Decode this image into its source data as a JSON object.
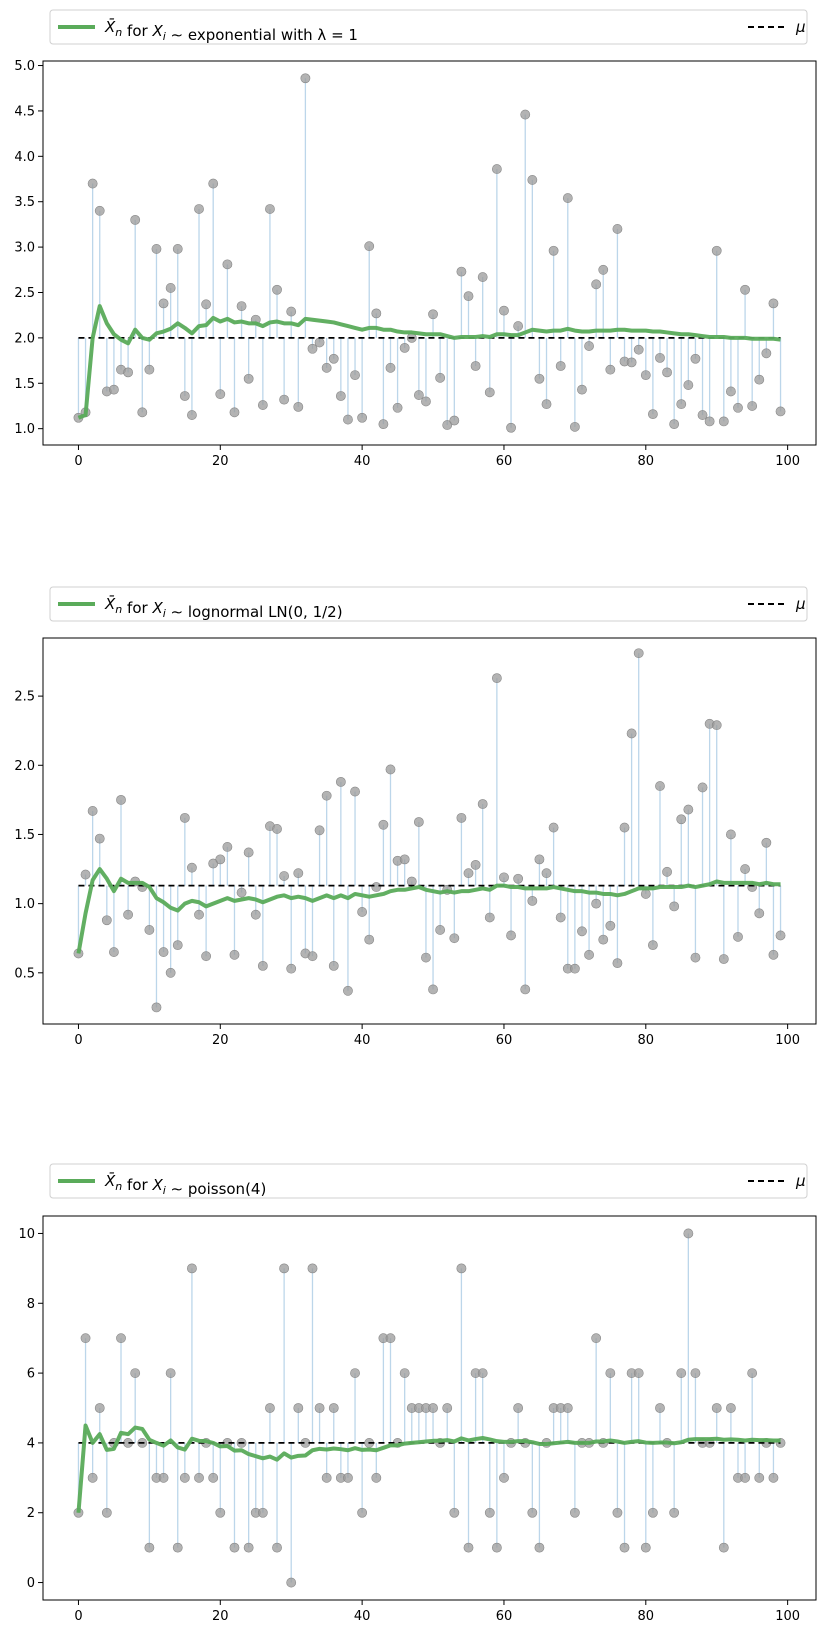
{
  "colors": {
    "mean_line": "#5aab5a",
    "mu_line": "#000000",
    "points": "#9a9a9a",
    "stems": "#bcd6ea"
  },
  "chart_data": [
    {
      "type": "line",
      "legend": {
        "prefix": "X̄",
        "sub_n": "n",
        "mid": " for ",
        "xvar": "X",
        "sub_i": "i",
        "dist": " ∼ exponential with λ = 1",
        "mu_label": "μ"
      },
      "mu": 2.0,
      "xlim": [
        -5,
        104
      ],
      "ylim": [
        0.82,
        5.05
      ],
      "xticks": [
        "0",
        "20",
        "40",
        "60",
        "80",
        "100"
      ],
      "yticks": [
        "1.0",
        "1.5",
        "2.0",
        "2.5",
        "3.0",
        "3.5",
        "4.0",
        "4.5",
        "5.0"
      ],
      "samples": [
        1.12,
        1.18,
        3.7,
        3.4,
        1.41,
        1.43,
        1.65,
        1.62,
        3.3,
        1.18,
        1.65,
        2.98,
        2.38,
        2.55,
        2.98,
        1.36,
        1.15,
        3.42,
        2.37,
        3.7,
        1.38,
        2.81,
        1.18,
        2.35,
        1.55,
        2.2,
        1.26,
        3.42,
        2.53,
        1.32,
        2.29,
        1.24,
        4.86,
        1.88,
        1.95,
        1.67,
        1.77,
        1.36,
        1.1,
        1.59,
        1.12,
        3.01,
        2.27,
        1.05,
        1.67,
        1.23,
        1.89,
        2.0,
        1.37,
        1.3,
        2.26,
        1.56,
        1.04,
        1.09,
        2.73,
        2.46,
        1.69,
        2.67,
        1.4,
        3.86,
        2.3,
        1.01,
        2.13,
        4.46,
        3.74,
        1.55,
        1.27,
        2.96,
        1.69,
        3.54,
        1.02,
        1.43,
        1.91,
        2.59,
        2.75,
        1.65,
        3.2,
        1.74,
        1.73,
        1.87,
        1.59,
        1.16,
        1.78,
        1.62,
        1.05,
        1.27,
        1.48,
        1.77,
        1.15,
        1.08,
        2.96,
        1.08,
        1.41,
        1.23,
        2.53,
        1.25,
        1.54,
        1.83,
        2.38,
        1.19
      ],
      "running_mean": [
        1.12,
        1.15,
        2.0,
        2.35,
        2.16,
        2.04,
        1.98,
        1.94,
        2.09,
        2.0,
        1.98,
        2.05,
        2.07,
        2.1,
        2.16,
        2.11,
        2.05,
        2.13,
        2.14,
        2.22,
        2.18,
        2.21,
        2.17,
        2.18,
        2.16,
        2.16,
        2.13,
        2.17,
        2.18,
        2.16,
        2.16,
        2.14,
        2.21,
        2.2,
        2.19,
        2.18,
        2.17,
        2.15,
        2.13,
        2.11,
        2.09,
        2.11,
        2.11,
        2.09,
        2.09,
        2.07,
        2.06,
        2.06,
        2.05,
        2.04,
        2.04,
        2.04,
        2.02,
        2.0,
        2.01,
        2.01,
        2.01,
        2.02,
        2.01,
        2.04,
        2.04,
        2.03,
        2.03,
        2.06,
        2.09,
        2.08,
        2.07,
        2.08,
        2.08,
        2.1,
        2.08,
        2.07,
        2.07,
        2.08,
        2.08,
        2.08,
        2.09,
        2.09,
        2.08,
        2.08,
        2.08,
        2.07,
        2.07,
        2.06,
        2.05,
        2.04,
        2.04,
        2.03,
        2.02,
        2.01,
        2.01,
        2.01,
        2.0,
        2.0,
        2.0,
        1.99,
        1.99,
        1.99,
        1.99,
        1.98
      ]
    },
    {
      "type": "line",
      "legend": {
        "prefix": "X̄",
        "sub_n": "n",
        "mid": " for ",
        "xvar": "X",
        "sub_i": "i",
        "dist": " ∼ lognormal LN(0, 1/2)",
        "mu_label": "μ"
      },
      "mu": 1.13,
      "xlim": [
        -5,
        104
      ],
      "ylim": [
        0.13,
        2.92
      ],
      "xticks": [
        "0",
        "20",
        "40",
        "60",
        "80",
        "100"
      ],
      "yticks": [
        "0.5",
        "1.0",
        "1.5",
        "2.0",
        "2.5"
      ],
      "samples": [
        0.64,
        1.21,
        1.67,
        1.47,
        0.88,
        0.65,
        1.75,
        0.92,
        1.16,
        1.12,
        0.81,
        0.25,
        0.65,
        0.5,
        0.7,
        1.62,
        1.26,
        0.92,
        0.62,
        1.29,
        1.32,
        1.41,
        0.63,
        1.08,
        1.37,
        0.92,
        0.55,
        1.56,
        1.54,
        1.2,
        0.53,
        1.22,
        0.64,
        0.62,
        1.53,
        1.78,
        0.55,
        1.88,
        0.37,
        1.81,
        0.94,
        0.74,
        1.12,
        1.57,
        1.97,
        1.31,
        1.32,
        1.16,
        1.59,
        0.61,
        0.38,
        0.81,
        1.1,
        0.75,
        1.62,
        1.22,
        1.28,
        1.72,
        0.9,
        2.63,
        1.19,
        0.77,
        1.18,
        0.38,
        1.02,
        1.32,
        1.22,
        1.55,
        0.9,
        0.53,
        0.53,
        0.8,
        0.63,
        1.0,
        0.74,
        0.84,
        0.57,
        1.55,
        2.23,
        2.81,
        1.07,
        0.7,
        1.85,
        1.23,
        0.98,
        1.61,
        1.68,
        0.61,
        1.84,
        2.3,
        2.29,
        0.6,
        1.5,
        0.76,
        1.25,
        1.12,
        0.93,
        1.44,
        0.63,
        0.77
      ],
      "running_mean": [
        0.64,
        0.93,
        1.17,
        1.25,
        1.18,
        1.09,
        1.18,
        1.15,
        1.15,
        1.15,
        1.12,
        1.04,
        1.01,
        0.97,
        0.95,
        1.0,
        1.02,
        1.01,
        0.98,
        1.0,
        1.02,
        1.04,
        1.02,
        1.03,
        1.04,
        1.03,
        1.01,
        1.03,
        1.05,
        1.06,
        1.04,
        1.05,
        1.04,
        1.02,
        1.04,
        1.06,
        1.04,
        1.06,
        1.04,
        1.07,
        1.06,
        1.05,
        1.06,
        1.07,
        1.09,
        1.1,
        1.1,
        1.11,
        1.12,
        1.1,
        1.09,
        1.08,
        1.09,
        1.08,
        1.09,
        1.09,
        1.1,
        1.11,
        1.1,
        1.13,
        1.13,
        1.12,
        1.12,
        1.11,
        1.11,
        1.11,
        1.11,
        1.12,
        1.11,
        1.1,
        1.09,
        1.09,
        1.08,
        1.08,
        1.07,
        1.07,
        1.06,
        1.07,
        1.09,
        1.11,
        1.11,
        1.11,
        1.12,
        1.12,
        1.12,
        1.12,
        1.13,
        1.12,
        1.13,
        1.14,
        1.16,
        1.15,
        1.15,
        1.15,
        1.15,
        1.15,
        1.14,
        1.15,
        1.14,
        1.14
      ]
    },
    {
      "type": "line",
      "legend": {
        "prefix": "X̄",
        "sub_n": "n",
        "mid": " for ",
        "xvar": "X",
        "sub_i": "i",
        "dist": " ∼ poisson(4)",
        "mu_label": "μ"
      },
      "mu": 4.0,
      "xlim": [
        -5,
        104
      ],
      "ylim": [
        -0.5,
        10.5
      ],
      "xticks": [
        "0",
        "20",
        "40",
        "60",
        "80",
        "100"
      ],
      "yticks": [
        "0",
        "2",
        "4",
        "6",
        "8",
        "10"
      ],
      "samples": [
        2,
        7,
        3,
        5,
        2,
        4,
        7,
        4,
        6,
        4,
        1,
        3,
        3,
        6,
        1,
        3,
        9,
        3,
        4,
        3,
        2,
        4,
        1,
        4,
        1,
        2,
        2,
        5,
        1,
        9,
        0,
        5,
        4,
        9,
        5,
        3,
        5,
        3,
        3,
        6,
        2,
        4,
        3,
        7,
        7,
        4,
        6,
        5,
        5,
        5,
        5,
        4,
        5,
        2,
        9,
        1,
        6,
        6,
        2,
        1,
        3,
        4,
        5,
        4,
        2,
        1,
        4,
        5,
        5,
        5,
        2,
        4,
        4,
        7,
        4,
        6,
        2,
        1,
        6,
        6,
        1,
        2,
        5,
        4,
        2,
        6,
        10,
        6,
        4,
        4,
        5,
        1,
        5,
        3,
        3,
        6,
        3,
        4,
        3,
        4
      ],
      "running_mean": [
        2.0,
        4.5,
        4.0,
        4.25,
        3.8,
        3.83,
        4.29,
        4.25,
        4.44,
        4.4,
        4.09,
        4.0,
        3.92,
        4.07,
        3.87,
        3.81,
        4.12,
        4.06,
        4.05,
        4.0,
        3.9,
        3.91,
        3.78,
        3.79,
        3.68,
        3.62,
        3.56,
        3.61,
        3.52,
        3.7,
        3.58,
        3.63,
        3.64,
        3.79,
        3.83,
        3.81,
        3.84,
        3.82,
        3.79,
        3.85,
        3.8,
        3.81,
        3.79,
        3.86,
        3.93,
        3.93,
        3.98,
        4.0,
        4.02,
        4.04,
        4.06,
        4.06,
        4.08,
        4.04,
        4.13,
        4.07,
        4.11,
        4.14,
        4.1,
        4.05,
        4.03,
        4.03,
        4.05,
        4.05,
        4.02,
        3.97,
        3.97,
        3.99,
        4.01,
        4.03,
        4.0,
        4.0,
        4.0,
        4.04,
        4.04,
        4.07,
        4.04,
        4.0,
        4.03,
        4.05,
        4.01,
        4.0,
        4.01,
        4.01,
        3.99,
        4.02,
        4.09,
        4.11,
        4.11,
        4.11,
        4.12,
        4.09,
        4.1,
        4.09,
        4.07,
        4.09,
        4.08,
        4.08,
        4.07,
        4.07
      ]
    }
  ]
}
